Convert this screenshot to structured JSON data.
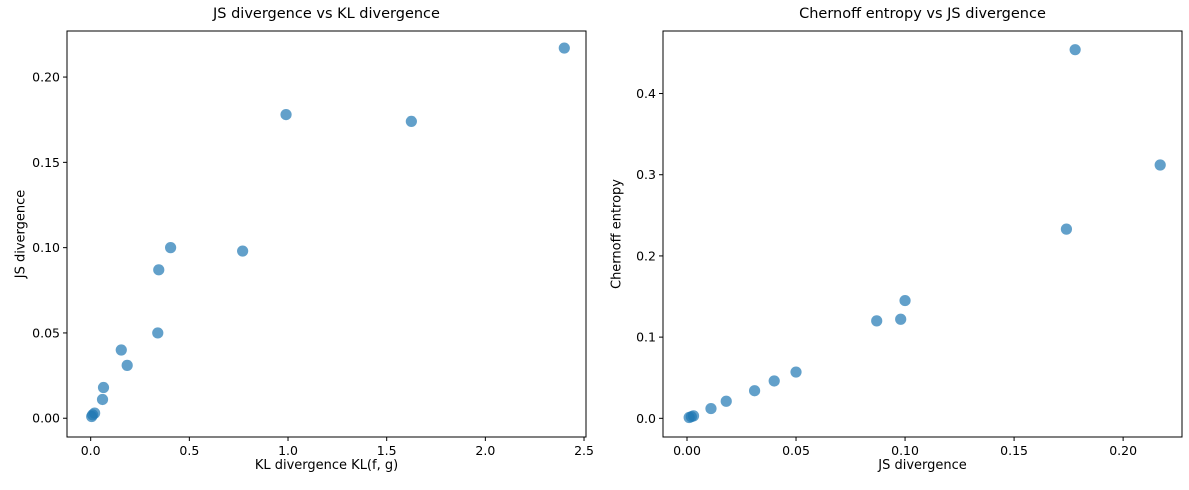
{
  "figure": {
    "background_color": "#ffffff",
    "marker_color": "#1f77b4",
    "marker_opacity": 0.7,
    "axis_color": "#000000",
    "text_color": "#000000"
  },
  "chart_data": [
    {
      "type": "scatter",
      "title": "JS divergence vs KL divergence",
      "xlabel": "KL divergence KL(f, g)",
      "ylabel": "JS divergence",
      "xlim": [
        -0.12,
        2.51
      ],
      "ylim": [
        -0.011,
        0.227
      ],
      "xticks": [
        0,
        0.5,
        1,
        1.5,
        2,
        2.5
      ],
      "xtick_labels": [
        "0.0",
        "0.5",
        "1.0",
        "1.5",
        "2.0",
        "2.5"
      ],
      "yticks": [
        0,
        0.05,
        0.1,
        0.15,
        0.2
      ],
      "ytick_labels": [
        "0.00",
        "0.05",
        "0.10",
        "0.15",
        "0.20"
      ],
      "grid": false,
      "legend": null,
      "points": {
        "x": [
          0.005,
          0.01,
          0.02,
          0.06,
          0.065,
          0.155,
          0.185,
          0.34,
          0.345,
          0.405,
          0.77,
          0.99,
          1.625,
          2.4
        ],
        "y": [
          0.001,
          0.002,
          0.003,
          0.011,
          0.018,
          0.04,
          0.031,
          0.05,
          0.087,
          0.1,
          0.098,
          0.178,
          0.174,
          0.217
        ]
      }
    },
    {
      "type": "scatter",
      "title": "Chernoff entropy vs JS divergence",
      "xlabel": "JS divergence",
      "ylabel": "Chernoff entropy",
      "xlim": [
        -0.011,
        0.227
      ],
      "ylim": [
        -0.023,
        0.477
      ],
      "xticks": [
        0,
        0.05,
        0.1,
        0.15,
        0.2
      ],
      "xtick_labels": [
        "0.00",
        "0.05",
        "0.10",
        "0.15",
        "0.20"
      ],
      "yticks": [
        0,
        0.1,
        0.2,
        0.3,
        0.4
      ],
      "ytick_labels": [
        "0.0",
        "0.1",
        "0.2",
        "0.3",
        "0.4"
      ],
      "grid": false,
      "legend": null,
      "points": {
        "x": [
          0.001,
          0.002,
          0.003,
          0.011,
          0.018,
          0.04,
          0.031,
          0.05,
          0.087,
          0.1,
          0.098,
          0.178,
          0.174,
          0.217
        ],
        "y": [
          0.001,
          0.002,
          0.003,
          0.012,
          0.021,
          0.046,
          0.034,
          0.057,
          0.12,
          0.145,
          0.122,
          0.454,
          0.233,
          0.312
        ]
      }
    }
  ]
}
